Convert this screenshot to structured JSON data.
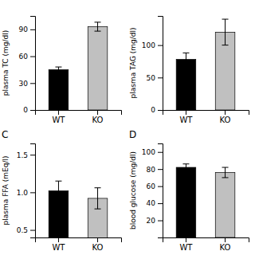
{
  "chart_data": [
    {
      "type": "bar",
      "ylabel": "plasma TC (mg/dl)",
      "categories": [
        "WT",
        "KO"
      ],
      "values": [
        45,
        93
      ],
      "errors": [
        3,
        5
      ],
      "colors": [
        "#000000",
        "#c0c0c0"
      ],
      "ylim": [
        0,
        105
      ],
      "yticks": [
        0,
        30,
        60,
        90
      ],
      "grid": false
    },
    {
      "type": "bar",
      "ylabel": "plasma TAG (mg/dl)",
      "categories": [
        "WT",
        "KO"
      ],
      "values": [
        78,
        120
      ],
      "errors": [
        10,
        20
      ],
      "colors": [
        "#000000",
        "#c0c0c0"
      ],
      "ylim": [
        0,
        145
      ],
      "yticks": [
        0,
        50,
        100
      ],
      "grid": false
    },
    {
      "type": "bar",
      "title": "C",
      "ylabel": "plasma FFA (mEq/l)",
      "categories": [
        "WT",
        "KO"
      ],
      "values": [
        1.02,
        0.92
      ],
      "errors": [
        0.13,
        0.14
      ],
      "colors": [
        "#000000",
        "#c0c0c0"
      ],
      "ylim": [
        0.4,
        1.65
      ],
      "yticks": [
        0.5,
        {
          "value": 1,
          "label": "1.0"
        },
        1.5
      ],
      "grid": false
    },
    {
      "type": "bar",
      "title": "D",
      "ylabel": "blood glucose (mg/dl)",
      "categories": [
        "WT",
        "KO"
      ],
      "values": [
        82,
        76
      ],
      "errors": [
        4,
        6
      ],
      "colors": [
        "#000000",
        "#c0c0c0"
      ],
      "ylim": [
        0,
        110
      ],
      "yticks": [
        20,
        40,
        60,
        80,
        100
      ],
      "grid": false
    }
  ]
}
